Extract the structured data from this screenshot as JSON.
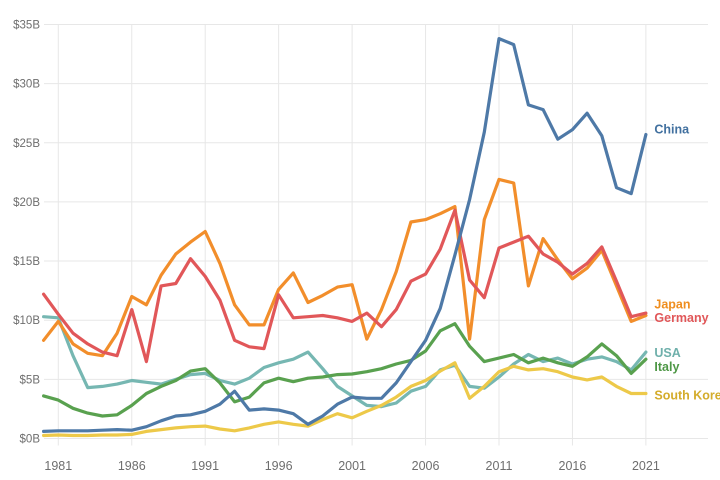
{
  "chart_data": {
    "type": "line",
    "title": "",
    "unit": "billions USD",
    "grid": true,
    "background": "#ffffff",
    "gridline_color": "#e7e7e7",
    "axis_text_color": "#6e6e6e",
    "xlim": [
      1980,
      2021
    ],
    "ylim": [
      0,
      35
    ],
    "x": [
      1980,
      1981,
      1982,
      1983,
      1984,
      1985,
      1986,
      1987,
      1988,
      1989,
      1990,
      1991,
      1992,
      1993,
      1994,
      1995,
      1996,
      1997,
      1998,
      1999,
      2000,
      2001,
      2002,
      2003,
      2004,
      2005,
      2006,
      2007,
      2008,
      2009,
      2010,
      2011,
      2012,
      2013,
      2014,
      2015,
      2016,
      2017,
      2018,
      2019,
      2020,
      2021
    ],
    "x_tick_years": [
      1981,
      1986,
      1991,
      1996,
      2001,
      2006,
      2011,
      2016,
      2021
    ],
    "x_tick_labels": [
      "1981",
      "1986",
      "1991",
      "1996",
      "2001",
      "2006",
      "2011",
      "2016",
      "2021"
    ],
    "y_ticks": [
      0,
      5,
      10,
      15,
      20,
      25,
      30,
      35
    ],
    "y_tick_labels": [
      "$0B",
      "$5B",
      "$10B",
      "$15B",
      "$20B",
      "$25B",
      "$30B",
      "$35B"
    ],
    "legend_position": "line-end-labels-right",
    "series": [
      {
        "name": "USA",
        "color": "#76b7b2",
        "label_color": "#6fb0ab",
        "label_dy": 5,
        "values": [
          10.3,
          10.2,
          7.0,
          4.3,
          4.4,
          4.6,
          4.9,
          4.75,
          4.6,
          5.0,
          5.4,
          5.5,
          4.9,
          4.6,
          5.1,
          6.0,
          6.4,
          6.7,
          7.3,
          5.9,
          4.4,
          3.6,
          2.8,
          2.7,
          3.0,
          4.0,
          4.4,
          5.8,
          6.2,
          4.4,
          4.25,
          5.2,
          6.3,
          7.1,
          6.5,
          6.8,
          6.3,
          6.7,
          6.9,
          6.5,
          5.8,
          7.3
        ]
      },
      {
        "name": "South Korea",
        "color": "#edc949",
        "label_color": "#d4ac2b",
        "label_dy": 6,
        "values": [
          0.25,
          0.3,
          0.25,
          0.25,
          0.3,
          0.3,
          0.35,
          0.6,
          0.75,
          0.9,
          1.0,
          1.05,
          0.8,
          0.65,
          0.9,
          1.2,
          1.4,
          1.2,
          1.05,
          1.6,
          2.1,
          1.75,
          2.3,
          2.8,
          3.5,
          4.4,
          4.9,
          5.7,
          6.4,
          3.4,
          4.4,
          5.65,
          6.1,
          5.8,
          5.9,
          5.65,
          5.2,
          4.95,
          5.2,
          4.4,
          3.8,
          3.8
        ]
      },
      {
        "name": "Italy",
        "color": "#59a14f",
        "label_color": "#4e9746",
        "label_dy": 12,
        "values": [
          3.6,
          3.25,
          2.55,
          2.15,
          1.9,
          2.0,
          2.8,
          3.8,
          4.4,
          4.9,
          5.7,
          5.9,
          4.7,
          3.1,
          3.5,
          4.7,
          5.1,
          4.8,
          5.1,
          5.2,
          5.4,
          5.45,
          5.65,
          5.9,
          6.3,
          6.6,
          7.4,
          9.1,
          9.7,
          7.8,
          6.5,
          6.8,
          7.1,
          6.4,
          6.8,
          6.4,
          6.1,
          6.9,
          8.0,
          7.0,
          5.5,
          6.7
        ]
      },
      {
        "name": "Japan",
        "color": "#f28e2b",
        "label_color": "#ef8e1f",
        "label_dy": -7,
        "values": [
          8.3,
          9.9,
          8.0,
          7.2,
          7.0,
          8.9,
          12.0,
          11.3,
          13.8,
          15.6,
          16.6,
          17.5,
          14.8,
          11.3,
          9.6,
          9.6,
          12.6,
          14.0,
          11.5,
          12.1,
          12.8,
          13.0,
          8.4,
          10.9,
          14.1,
          18.3,
          18.5,
          19.0,
          19.6,
          8.4,
          18.5,
          21.9,
          21.6,
          12.9,
          16.9,
          15.1,
          13.5,
          14.4,
          15.9,
          12.9,
          9.9,
          10.4
        ]
      },
      {
        "name": "Germany",
        "color": "#e15759",
        "label_color": "#e15759",
        "label_dy": 9,
        "values": [
          12.2,
          10.5,
          8.9,
          8.0,
          7.3,
          7.0,
          10.9,
          6.5,
          12.9,
          13.1,
          15.2,
          13.7,
          11.7,
          8.3,
          7.75,
          7.6,
          12.15,
          10.2,
          10.3,
          10.4,
          10.2,
          9.9,
          10.6,
          9.45,
          10.9,
          13.3,
          13.9,
          16.0,
          19.3,
          13.4,
          11.9,
          16.1,
          16.6,
          17.1,
          15.6,
          14.9,
          13.9,
          14.8,
          16.2,
          13.3,
          10.3,
          10.6
        ]
      },
      {
        "name": "China",
        "color": "#4e79a7",
        "label_color": "#41709f",
        "label_dy": -1,
        "values": [
          0.6,
          0.65,
          0.65,
          0.65,
          0.7,
          0.75,
          0.7,
          1.0,
          1.5,
          1.9,
          2.0,
          2.3,
          2.9,
          4.0,
          2.4,
          2.5,
          2.4,
          2.1,
          1.2,
          1.9,
          2.9,
          3.5,
          3.4,
          3.4,
          4.7,
          6.5,
          8.3,
          11.0,
          15.5,
          20.2,
          25.9,
          33.8,
          33.3,
          28.2,
          27.8,
          25.3,
          26.1,
          27.5,
          25.6,
          21.2,
          20.7,
          25.7
        ]
      }
    ]
  }
}
